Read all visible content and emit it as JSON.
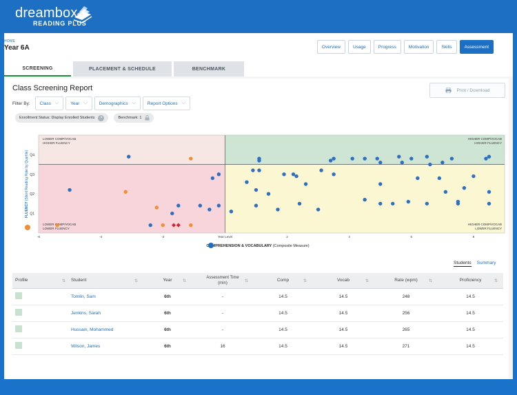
{
  "brand": {
    "name": "dreambox",
    "sub": "READING PLUS"
  },
  "breadcrumb": "HOME",
  "page_title": "Year 6A",
  "nav": [
    {
      "label": "Overview",
      "active": false
    },
    {
      "label": "Usage",
      "active": false
    },
    {
      "label": "Progress",
      "active": false
    },
    {
      "label": "Motivation",
      "active": false
    },
    {
      "label": "Skills",
      "active": false
    },
    {
      "label": "Assessment",
      "active": true
    }
  ],
  "tabs": [
    {
      "label": "SCREENING",
      "active": true
    },
    {
      "label": "PLACEMENT & SCHEDULE",
      "active": false
    },
    {
      "label": "BENCHMARK",
      "active": false
    }
  ],
  "report": {
    "title": "Class Screening Report",
    "print_label": "Print / Download",
    "filter_label": "Filter By:",
    "filters": [
      "Class",
      "Year",
      "Demographics",
      "Report Options"
    ],
    "chips": [
      {
        "label": "Enrollment Status: Display Enrolled Students",
        "icon": "close-icon"
      },
      {
        "label": "Benchmark: 1",
        "icon": "lock-icon"
      }
    ]
  },
  "chart_data": {
    "type": "scatter",
    "xlabel": "COMPREHENSION & VOCABULARY",
    "xlabel_suffix": "(Composite Measure)",
    "ylabel": "FLUENCY",
    "ylabel_suffix": "(Silent Reading Rate by Quartile)",
    "x_ticks": [
      "-6",
      "-4",
      "-2",
      "Year Level",
      "2",
      "4",
      "6",
      "8"
    ],
    "x_tick_values": [
      -6,
      -4,
      -2,
      0,
      2,
      4,
      6,
      8
    ],
    "xlim": [
      -6,
      9
    ],
    "y_ticks": [
      "Q1",
      "Q2",
      "Q3",
      "Q4"
    ],
    "y_tick_values": [
      1,
      2,
      3,
      4
    ],
    "ylim": [
      0,
      5
    ],
    "quadrants": {
      "top_left": [
        "LOWER COMP/VOCAB",
        "HIGHER FLUENCY"
      ],
      "top_right": [
        "HIGHER COMP/VOCAB",
        "HIGHER FLUENCY"
      ],
      "bottom_left": [
        "LOWER COMP/VOCAB",
        "LOWER FLUENCY"
      ],
      "bottom_right": [
        "HIGHER COMP/VOCAB",
        "LOWER FLUENCY"
      ]
    },
    "colors": {
      "blue": "#2f6fc0",
      "orange": "#ef8e35",
      "red": "#d6232a",
      "tl": "#f6e6e4",
      "tr": "#cfe5d3",
      "bl": "#f8d5da",
      "br": "#fbf7d2"
    },
    "points": [
      {
        "x": -5.0,
        "y": 2.2,
        "c": "blue"
      },
      {
        "x": -3.1,
        "y": 3.9,
        "c": "blue"
      },
      {
        "x": -5.4,
        "y": 0.4,
        "c": "orange"
      },
      {
        "x": -3.2,
        "y": 2.1,
        "c": "orange"
      },
      {
        "x": -2.2,
        "y": 1.3,
        "c": "orange"
      },
      {
        "x": -1.1,
        "y": 3.8,
        "c": "orange"
      },
      {
        "x": -2.4,
        "y": 0.4,
        "c": "blue"
      },
      {
        "x": -1.7,
        "y": 1.0,
        "c": "blue"
      },
      {
        "x": -1.5,
        "y": 1.4,
        "c": "blue"
      },
      {
        "x": -2.0,
        "y": 0.4,
        "c": "orange"
      },
      {
        "x": -1.65,
        "y": 0.4,
        "c": "red"
      },
      {
        "x": -1.5,
        "y": 0.4,
        "c": "red"
      },
      {
        "x": -1.1,
        "y": 0.4,
        "c": "orange"
      },
      {
        "x": -0.8,
        "y": 1.4,
        "c": "blue"
      },
      {
        "x": -0.5,
        "y": 1.2,
        "c": "blue"
      },
      {
        "x": -0.4,
        "y": 2.8,
        "c": "blue"
      },
      {
        "x": -0.2,
        "y": 3.0,
        "c": "blue"
      },
      {
        "x": -0.2,
        "y": 1.4,
        "c": "blue"
      },
      {
        "x": 0.2,
        "y": 1.1,
        "c": "blue"
      },
      {
        "x": 0.7,
        "y": 2.6,
        "c": "blue"
      },
      {
        "x": 0.9,
        "y": 3.2,
        "c": "blue"
      },
      {
        "x": 1.1,
        "y": 3.2,
        "c": "blue"
      },
      {
        "x": 1.1,
        "y": 3.8,
        "c": "blue"
      },
      {
        "x": 1.1,
        "y": 3.7,
        "c": "blue"
      },
      {
        "x": 1.0,
        "y": 2.2,
        "c": "blue"
      },
      {
        "x": 1.0,
        "y": 1.4,
        "c": "blue"
      },
      {
        "x": 1.4,
        "y": 2.0,
        "c": "blue"
      },
      {
        "x": 1.7,
        "y": 1.2,
        "c": "blue"
      },
      {
        "x": 1.9,
        "y": 3.0,
        "c": "blue"
      },
      {
        "x": 2.2,
        "y": 3.0,
        "c": "blue"
      },
      {
        "x": 2.6,
        "y": 2.5,
        "c": "blue"
      },
      {
        "x": 2.3,
        "y": 2.9,
        "c": "blue"
      },
      {
        "x": 2.4,
        "y": 1.5,
        "c": "blue"
      },
      {
        "x": 3.0,
        "y": 1.2,
        "c": "blue"
      },
      {
        "x": 3.1,
        "y": 3.2,
        "c": "blue"
      },
      {
        "x": 3.4,
        "y": 3.7,
        "c": "blue"
      },
      {
        "x": 3.5,
        "y": 3.8,
        "c": "blue"
      },
      {
        "x": 3.5,
        "y": 3.0,
        "c": "blue"
      },
      {
        "x": 4.1,
        "y": 3.8,
        "c": "blue"
      },
      {
        "x": 4.5,
        "y": 3.8,
        "c": "blue"
      },
      {
        "x": 4.5,
        "y": 1.7,
        "c": "blue"
      },
      {
        "x": 4.9,
        "y": 3.8,
        "c": "blue"
      },
      {
        "x": 5.0,
        "y": 3.6,
        "c": "blue"
      },
      {
        "x": 5.0,
        "y": 2.5,
        "c": "blue"
      },
      {
        "x": 5.0,
        "y": 1.5,
        "c": "blue"
      },
      {
        "x": 5.4,
        "y": 1.5,
        "c": "blue"
      },
      {
        "x": 5.6,
        "y": 3.9,
        "c": "blue"
      },
      {
        "x": 5.7,
        "y": 3.6,
        "c": "blue"
      },
      {
        "x": 5.9,
        "y": 1.6,
        "c": "blue"
      },
      {
        "x": 6.0,
        "y": 3.8,
        "c": "blue"
      },
      {
        "x": 6.2,
        "y": 2.8,
        "c": "blue"
      },
      {
        "x": 6.5,
        "y": 3.9,
        "c": "blue"
      },
      {
        "x": 6.6,
        "y": 3.5,
        "c": "blue"
      },
      {
        "x": 6.5,
        "y": 1.5,
        "c": "blue"
      },
      {
        "x": 6.9,
        "y": 2.8,
        "c": "blue"
      },
      {
        "x": 7.0,
        "y": 3.6,
        "c": "blue"
      },
      {
        "x": 7.1,
        "y": 2.1,
        "c": "blue"
      },
      {
        "x": 7.3,
        "y": 3.8,
        "c": "blue"
      },
      {
        "x": 7.5,
        "y": 1.5,
        "c": "blue"
      },
      {
        "x": 7.5,
        "y": 1.6,
        "c": "blue"
      },
      {
        "x": 7.7,
        "y": 2.3,
        "c": "blue"
      },
      {
        "x": 8.0,
        "y": 2.9,
        "c": "blue"
      },
      {
        "x": 8.4,
        "y": 3.8,
        "c": "blue"
      },
      {
        "x": 8.5,
        "y": 3.9,
        "c": "blue"
      },
      {
        "x": 8.5,
        "y": 2.1,
        "c": "blue"
      },
      {
        "x": 8.5,
        "y": 1.5,
        "c": "blue"
      }
    ]
  },
  "students_tabs": {
    "students": "Students",
    "summary": "Summary"
  },
  "table": {
    "headers": [
      "Profile",
      "Student",
      "Year",
      "Assessment Time (min)",
      "Comp",
      "Vocab",
      "Rate (wpm)",
      "Proficiency"
    ],
    "rows": [
      {
        "name": "Tomlin, Sam",
        "year": "6th",
        "time": "-",
        "comp": "14.5",
        "vocab": "14.5",
        "rate": "248",
        "prof": "14.5"
      },
      {
        "name": "Jenkins, Sarah",
        "year": "6th",
        "time": "-",
        "comp": "14.5",
        "vocab": "14.5",
        "rate": "256",
        "prof": "14.5"
      },
      {
        "name": "Hussain, Mohammed",
        "year": "6th",
        "time": "-",
        "comp": "14.5",
        "vocab": "14.5",
        "rate": "265",
        "prof": "14.5"
      },
      {
        "name": "Wilson, James",
        "year": "6th",
        "time": "16",
        "comp": "14.5",
        "vocab": "14.5",
        "rate": "271",
        "prof": "14.5"
      }
    ]
  }
}
